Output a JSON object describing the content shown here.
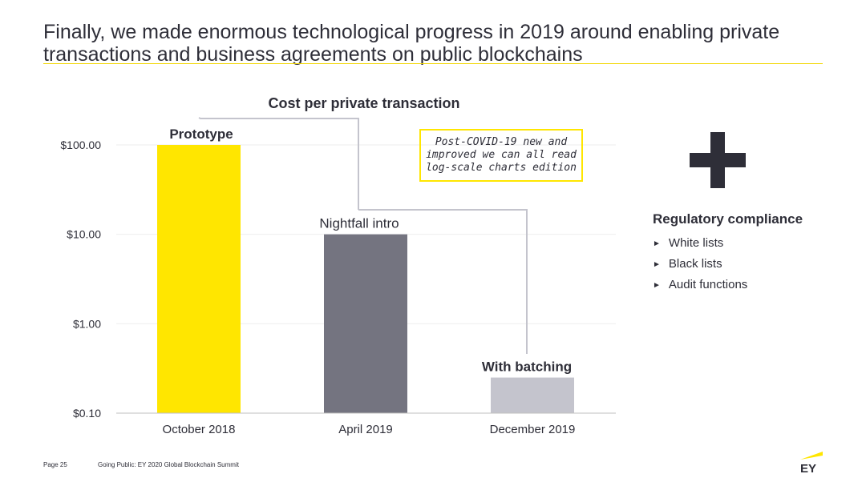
{
  "header": {
    "title": "Finally, we made enormous technological progress in 2019 around enabling private transactions and business agreements on public blockchains"
  },
  "chart_data": {
    "type": "bar",
    "title": "Cost per private transaction",
    "categories": [
      "October 2018",
      "April 2019",
      "December 2019"
    ],
    "values": [
      100.0,
      10.0,
      0.25
    ],
    "bar_labels": [
      "Prototype",
      "Nightfall intro",
      "With batching"
    ],
    "bar_colors": [
      "#ffe600",
      "#747480",
      "#c4c4cd"
    ],
    "y_scale": "log",
    "ylim": [
      0.1,
      100
    ],
    "yticks": [
      0.1,
      1,
      10,
      100
    ],
    "ytick_labels": [
      "$0.10",
      "$1.00",
      "$10.00",
      "$100.00"
    ],
    "xlabel": "",
    "ylabel": "",
    "grid": true
  },
  "annotation": {
    "lines": [
      "Post-COVID-19 new and",
      "improved we can all read",
      "log-scale charts edition"
    ]
  },
  "side_panel": {
    "icon": "plus-icon",
    "heading": "Regulatory compliance",
    "items": [
      "White lists",
      "Black lists",
      "Audit functions"
    ],
    "bullet": "►"
  },
  "footer": {
    "page": "Page 25",
    "text": "Going Public: EY 2020 Global Blockchain Summit",
    "logo_text": "EY"
  },
  "colors": {
    "accent": "#ffe600",
    "text": "#2e2e38",
    "connector": "#c4c4cd"
  }
}
